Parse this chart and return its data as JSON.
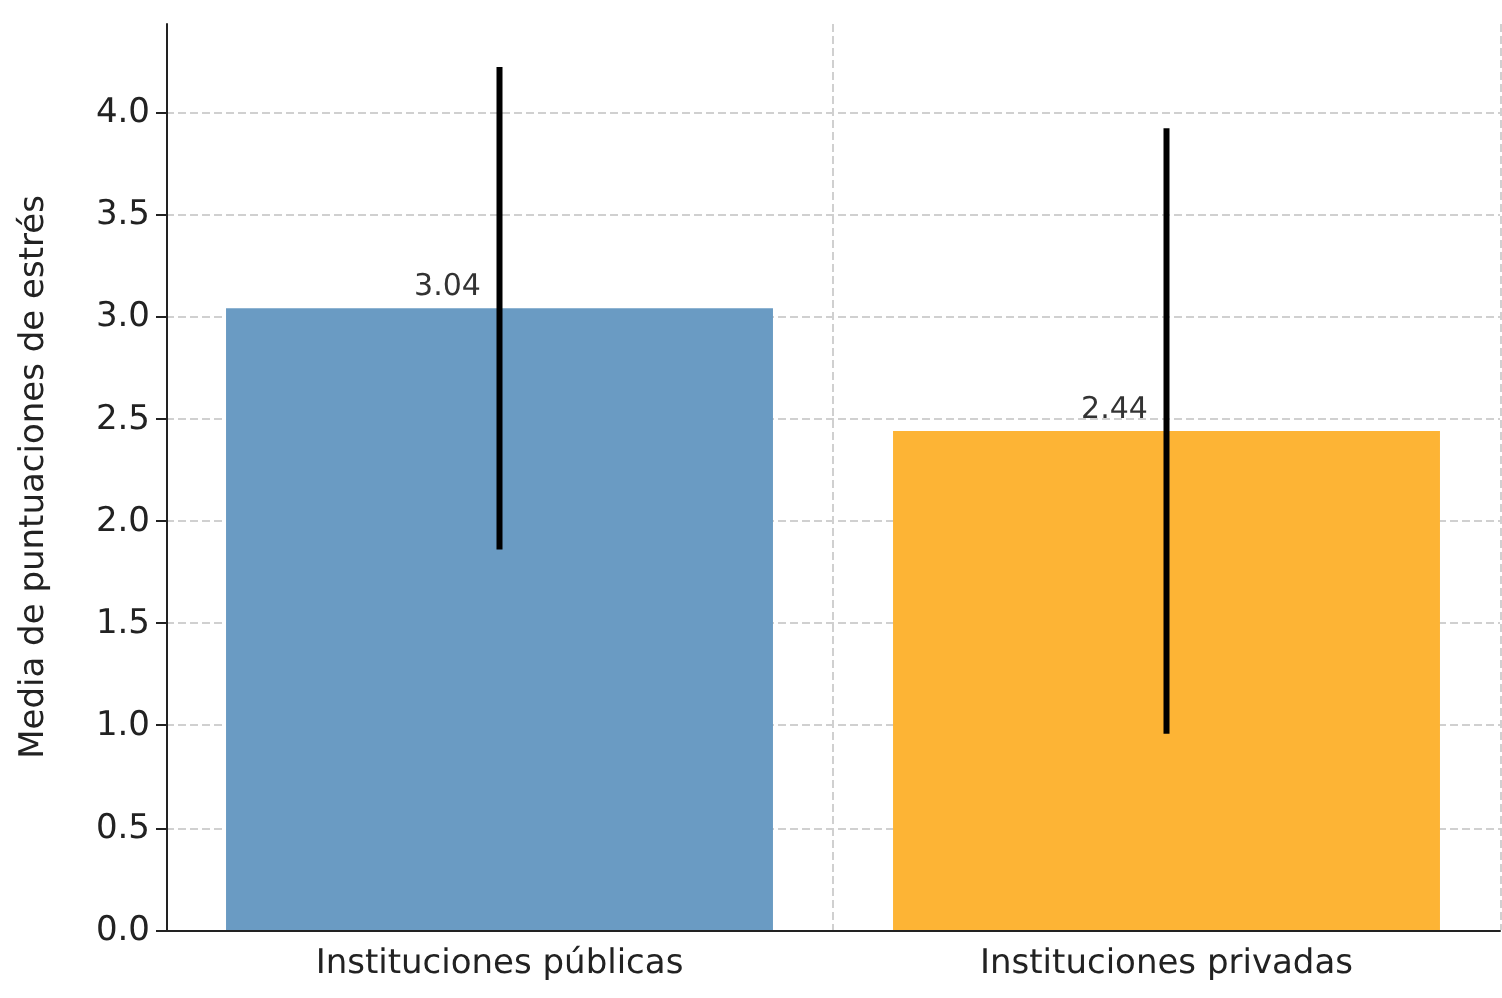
{
  "chart_data": {
    "type": "bar",
    "ylabel": "Media de puntuaciones de estrés",
    "categories": [
      "Instituciones públicas",
      "Instituciones privadas"
    ],
    "values": [
      3.04,
      2.44
    ],
    "colors": [
      "#6a9bc3",
      "#fdb435"
    ],
    "errors": [
      1.18,
      1.48
    ],
    "data_labels": true,
    "ylim": [
      0,
      4.43
    ],
    "yticks": [
      {
        "value": 0,
        "label": "0.0"
      },
      {
        "value": 0.5,
        "label": "0.5"
      },
      {
        "value": 1,
        "label": "1.0"
      },
      {
        "value": 1.5,
        "label": "1.5"
      },
      {
        "value": 2,
        "label": "2.0"
      },
      {
        "value": 2.5,
        "label": "2.5"
      },
      {
        "value": 3,
        "label": "3.0"
      },
      {
        "value": 3.5,
        "label": "3.5"
      },
      {
        "value": 4,
        "label": "4.0"
      }
    ],
    "grid": true
  }
}
